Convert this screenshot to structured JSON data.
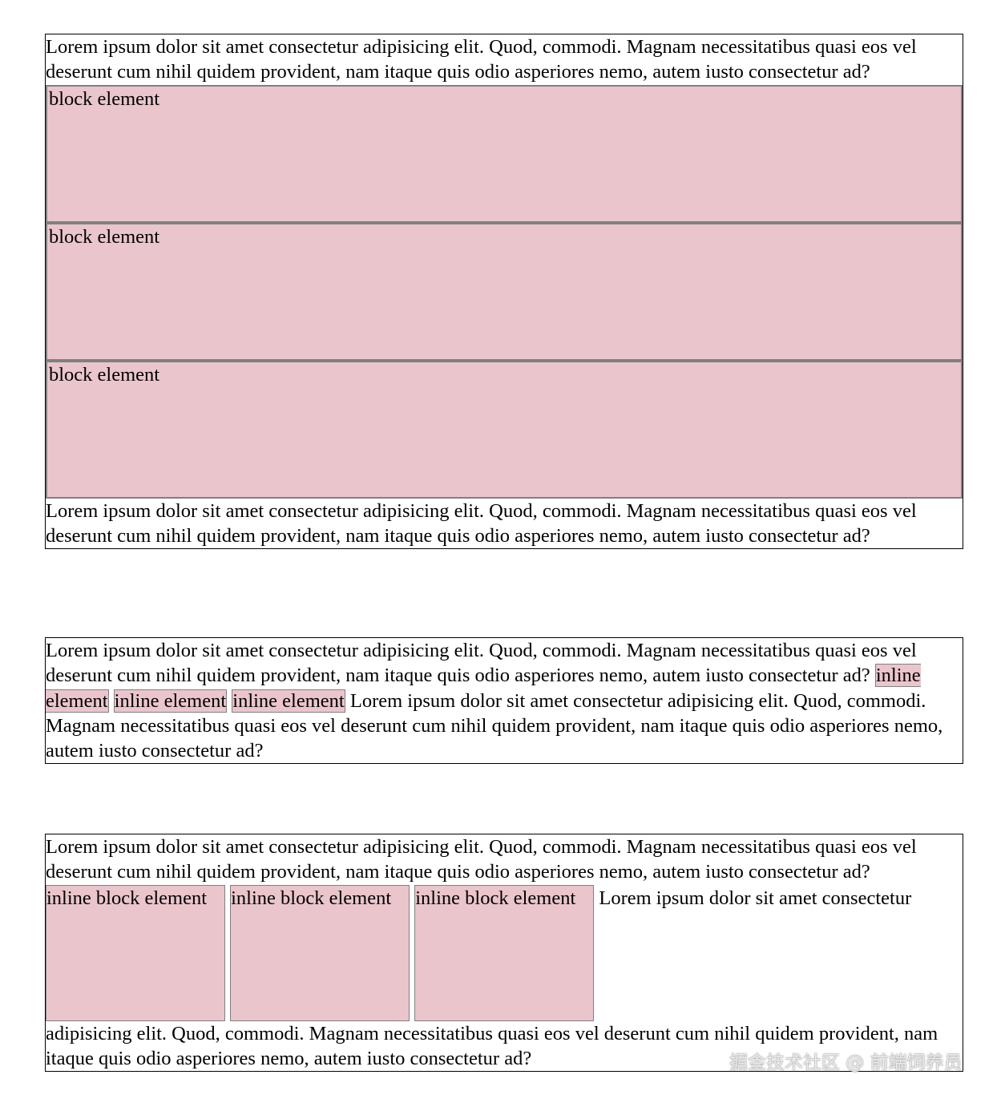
{
  "lorem": "Lorem ipsum dolor sit amet consectetur adipisicing elit. Quod, commodi. Magnam necessitatibus quasi eos vel deserunt cum nihil quidem provident, nam itaque quis odio asperiores nemo, autem iusto consectetur ad?",
  "block_label": "block element",
  "inline_label": "inline element",
  "inline_block_label": "inline block element",
  "colors": {
    "element_bg": "#ebc5cc",
    "element_border": "#808080"
  },
  "watermark": "掘金技术社区 @ 前端饲养员"
}
